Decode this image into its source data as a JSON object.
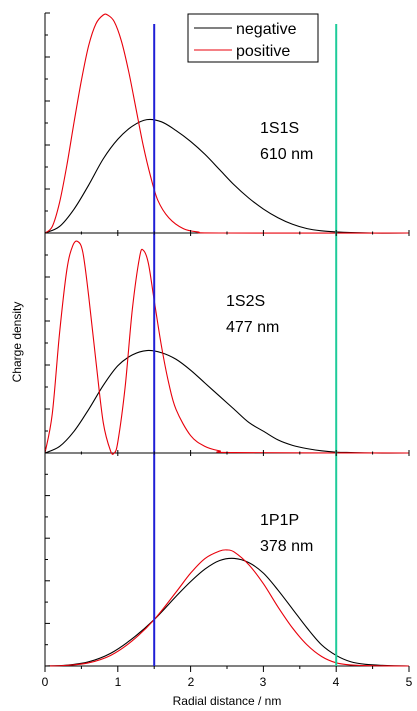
{
  "chart_data": {
    "type": "line",
    "xlabel": "Radial distance / nm",
    "ylabel": "Charge density",
    "xlim": [
      0,
      5
    ],
    "x_ticks": [
      "0",
      "1",
      "2",
      "3",
      "4",
      "5"
    ],
    "legend": {
      "placement": "top-right",
      "entries": [
        {
          "label": "negative",
          "color": "#000000"
        },
        {
          "label": "positive",
          "color": "#e8000b"
        }
      ]
    },
    "vertical_lines": [
      {
        "x": 1.5,
        "color": "#1f1fd6"
      },
      {
        "x": 4.0,
        "color": "#1ecb9a"
      }
    ],
    "panels": [
      {
        "label_line1": "1S1S",
        "label_line2": "610 nm",
        "ylim": [
          0,
          1.0
        ],
        "series": [
          {
            "name": "negative",
            "color": "#000000",
            "x": [
              0.0,
              0.2,
              0.4,
              0.6,
              0.8,
              1.0,
              1.2,
              1.4,
              1.6,
              1.8,
              2.0,
              2.2,
              2.4,
              2.6,
              2.8,
              3.0,
              3.2,
              3.4,
              3.6,
              3.8,
              4.0,
              4.2,
              4.5,
              5.0
            ],
            "y": [
              0.0,
              0.03,
              0.11,
              0.22,
              0.34,
              0.43,
              0.49,
              0.52,
              0.51,
              0.47,
              0.42,
              0.36,
              0.29,
              0.22,
              0.16,
              0.11,
              0.07,
              0.04,
              0.02,
              0.01,
              0.005,
              0.002,
              0.0,
              0.0
            ]
          },
          {
            "name": "positive",
            "color": "#e8000b",
            "x": [
              0.0,
              0.1,
              0.2,
              0.3,
              0.4,
              0.5,
              0.6,
              0.7,
              0.8,
              0.86,
              0.95,
              1.05,
              1.15,
              1.25,
              1.35,
              1.45,
              1.55,
              1.7,
              1.9,
              2.1,
              2.4,
              5.0
            ],
            "y": [
              0.0,
              0.03,
              0.14,
              0.31,
              0.51,
              0.7,
              0.86,
              0.96,
              1.0,
              1.0,
              0.97,
              0.88,
              0.74,
              0.57,
              0.4,
              0.26,
              0.15,
              0.07,
              0.02,
              0.005,
              0.0,
              0.0
            ]
          }
        ]
      },
      {
        "label_line1": "1S2S",
        "label_line2": "477 nm",
        "ylim": [
          0,
          1.0
        ],
        "series": [
          {
            "name": "negative",
            "color": "#000000",
            "x": [
              0.0,
              0.2,
              0.4,
              0.6,
              0.8,
              1.0,
              1.2,
              1.4,
              1.6,
              1.8,
              2.0,
              2.2,
              2.4,
              2.6,
              2.8,
              3.0,
              3.2,
              3.4,
              3.6,
              3.8,
              4.0,
              4.2,
              4.5,
              5.0
            ],
            "y": [
              0.0,
              0.03,
              0.1,
              0.2,
              0.31,
              0.4,
              0.45,
              0.47,
              0.46,
              0.43,
              0.38,
              0.32,
              0.26,
              0.2,
              0.14,
              0.1,
              0.06,
              0.035,
              0.02,
              0.01,
              0.004,
              0.002,
              0.0,
              0.0
            ]
          },
          {
            "name": "positive",
            "color": "#e8000b",
            "x": [
              0.0,
              0.1,
              0.2,
              0.3,
              0.38,
              0.45,
              0.52,
              0.6,
              0.7,
              0.8,
              0.9,
              0.95,
              1.0,
              1.1,
              1.2,
              1.3,
              1.35,
              1.42,
              1.5,
              1.6,
              1.7,
              1.8,
              2.0,
              2.2,
              2.4,
              2.6,
              5.0
            ],
            "y": [
              0.0,
              0.18,
              0.55,
              0.84,
              0.95,
              0.97,
              0.92,
              0.72,
              0.42,
              0.14,
              0.01,
              0.0,
              0.05,
              0.3,
              0.66,
              0.9,
              0.93,
              0.87,
              0.7,
              0.49,
              0.32,
              0.2,
              0.08,
              0.03,
              0.01,
              0.002,
              0.0
            ]
          }
        ]
      },
      {
        "label_line1": "1P1P",
        "label_line2": "378 nm",
        "ylim": [
          0,
          1.0
        ],
        "series": [
          {
            "name": "negative",
            "color": "#000000",
            "x": [
              0.0,
              0.3,
              0.6,
              0.9,
              1.2,
              1.5,
              1.8,
              2.0,
              2.2,
              2.4,
              2.6,
              2.8,
              3.0,
              3.2,
              3.4,
              3.6,
              3.8,
              4.0,
              4.2,
              4.4,
              4.7,
              5.0
            ],
            "y": [
              0.0,
              0.004,
              0.02,
              0.06,
              0.13,
              0.22,
              0.33,
              0.4,
              0.46,
              0.5,
              0.51,
              0.49,
              0.44,
              0.36,
              0.27,
              0.18,
              0.1,
              0.05,
              0.02,
              0.008,
              0.002,
              0.0
            ]
          },
          {
            "name": "positive",
            "color": "#e8000b",
            "x": [
              0.0,
              0.3,
              0.6,
              0.9,
              1.2,
              1.5,
              1.8,
              2.0,
              2.2,
              2.4,
              2.5,
              2.6,
              2.8,
              3.0,
              3.2,
              3.4,
              3.6,
              3.8,
              4.0,
              4.2,
              4.5,
              5.0
            ],
            "y": [
              0.0,
              0.003,
              0.015,
              0.05,
              0.12,
              0.22,
              0.35,
              0.44,
              0.51,
              0.545,
              0.55,
              0.54,
              0.48,
              0.39,
              0.28,
              0.18,
              0.1,
              0.045,
              0.015,
              0.005,
              0.001,
              0.0
            ]
          }
        ]
      }
    ]
  }
}
